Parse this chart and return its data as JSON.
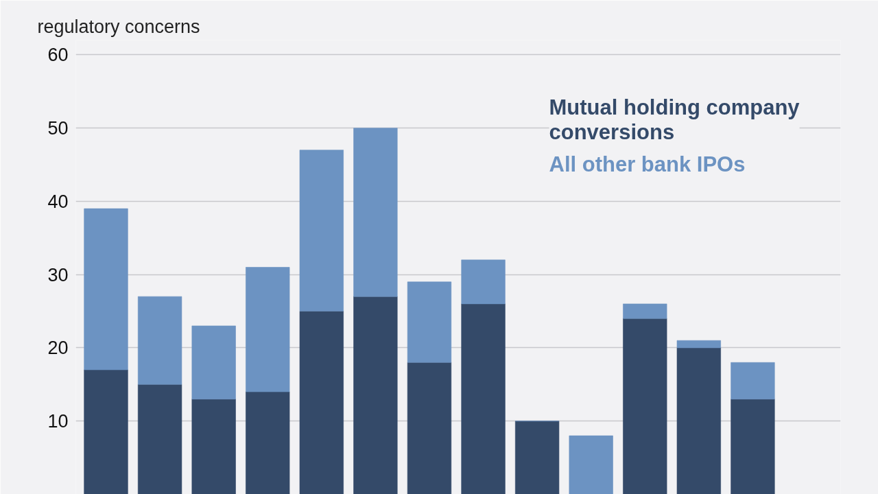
{
  "chart_data": {
    "type": "bar",
    "title": "regulatory concerns",
    "stacked": true,
    "categories": [
      null,
      null,
      null,
      null,
      null,
      null,
      null,
      null,
      null,
      null,
      null,
      null,
      null
    ],
    "series": [
      {
        "name": "Mutual holding company conversions",
        "color": "#344a69",
        "values": [
          17,
          15,
          13,
          14,
          25,
          27,
          18,
          26,
          10,
          null,
          24,
          20,
          13
        ]
      },
      {
        "name": "All other bank IPOs",
        "color": "#6c93c2",
        "values": [
          22,
          12,
          10,
          17,
          22,
          23,
          11,
          6,
          0,
          8,
          2,
          1,
          5
        ]
      }
    ],
    "ylim": [
      0,
      62
    ],
    "yticks": [
      10,
      20,
      30,
      40,
      50,
      60
    ],
    "grid": "y",
    "legend": "top right",
    "tick_labels": "y"
  }
}
